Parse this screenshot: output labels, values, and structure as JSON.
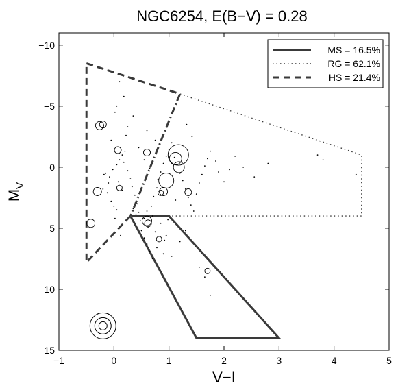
{
  "chart_data": {
    "type": "scatter",
    "title": "NGC6254,  E(B−V) = 0.28",
    "xlabel_main": "V−I",
    "ylabel_main": "M",
    "ylabel_sub": "V",
    "xlim": [
      -1,
      5
    ],
    "ylim": [
      15,
      -11
    ],
    "x_ticks": [
      -1,
      0,
      1,
      2,
      3,
      4,
      5
    ],
    "x_tick_labels": [
      "−1",
      "0",
      "1",
      "2",
      "3",
      "4",
      "5"
    ],
    "y_ticks": [
      -10,
      -5,
      0,
      5,
      10,
      15
    ],
    "y_tick_labels": [
      "−10",
      "−5",
      "0",
      "5",
      "10",
      "15"
    ],
    "grid": false,
    "legend_position": "top-right",
    "colors": {
      "regions": "#3a3a3a",
      "points": "#000000"
    },
    "regions": [
      {
        "label": "MS = 16.5%",
        "style": "solid",
        "polygon": [
          [
            0.3,
            4.0
          ],
          [
            1.0,
            4.0
          ],
          [
            3.0,
            14.0
          ],
          [
            1.5,
            14.0
          ]
        ]
      },
      {
        "label": "RG = 62.1%",
        "style": "dotted",
        "polygon": [
          [
            0.3,
            4.0
          ],
          [
            1.2,
            -6.0
          ],
          [
            4.5,
            -1.0
          ],
          [
            4.5,
            4.0
          ],
          [
            1.0,
            4.0
          ]
        ]
      },
      {
        "label": "HS = 21.4%",
        "style": "dashed",
        "polygon": [
          [
            -0.5,
            -8.5
          ],
          [
            1.2,
            -6.0
          ],
          [
            0.3,
            4.0
          ],
          [
            -0.5,
            7.8
          ]
        ]
      }
    ],
    "region_boundary": {
      "style": "dashdot",
      "from": [
        1.2,
        -6.0
      ],
      "to": [
        0.3,
        4.0
      ]
    },
    "dots": [
      [
        -0.2,
        1.8
      ],
      [
        -0.12,
        2.1
      ],
      [
        -0.05,
        2.8
      ],
      [
        0.0,
        3.2
      ],
      [
        0.05,
        3.5
      ],
      [
        0.02,
        4.2
      ],
      [
        0.08,
        5.0
      ],
      [
        0.12,
        5.6
      ],
      [
        -0.1,
        1.3
      ],
      [
        -0.08,
        0.8
      ],
      [
        -0.15,
        0.5
      ],
      [
        -0.02,
        0.2
      ],
      [
        0.05,
        -0.2
      ],
      [
        0.1,
        -0.6
      ],
      [
        0.15,
        -1.0
      ],
      [
        0.2,
        -1.3
      ],
      [
        0.18,
        -0.4
      ],
      [
        0.25,
        0.3
      ],
      [
        0.3,
        0.9
      ],
      [
        0.33,
        1.6
      ],
      [
        0.38,
        2.3
      ],
      [
        0.42,
        3.0
      ],
      [
        0.45,
        3.7
      ],
      [
        0.48,
        4.4
      ],
      [
        0.5,
        5.2
      ],
      [
        0.55,
        5.8
      ],
      [
        0.6,
        6.3
      ],
      [
        0.62,
        4.9
      ],
      [
        0.68,
        3.2
      ],
      [
        0.72,
        2.4
      ],
      [
        0.78,
        1.7
      ],
      [
        0.8,
        1.0
      ],
      [
        0.85,
        0.4
      ],
      [
        0.9,
        -0.3
      ],
      [
        0.95,
        -0.9
      ],
      [
        1.0,
        -1.4
      ],
      [
        1.05,
        -2.0
      ],
      [
        1.1,
        -0.8
      ],
      [
        1.15,
        -0.2
      ],
      [
        1.2,
        0.5
      ],
      [
        1.25,
        1.1
      ],
      [
        1.3,
        1.8
      ],
      [
        1.35,
        2.5
      ],
      [
        1.4,
        3.1
      ],
      [
        1.45,
        3.6
      ],
      [
        1.5,
        2.2
      ],
      [
        1.55,
        1.3
      ],
      [
        1.6,
        0.6
      ],
      [
        1.65,
        -0.1
      ],
      [
        1.7,
        -0.7
      ],
      [
        1.75,
        -1.3
      ],
      [
        1.85,
        -0.5
      ],
      [
        1.9,
        0.4
      ],
      [
        2.0,
        1.2
      ],
      [
        2.1,
        0.2
      ],
      [
        2.2,
        -0.9
      ],
      [
        2.35,
        0.0
      ],
      [
        2.55,
        0.8
      ],
      [
        2.8,
        -0.3
      ],
      [
        3.7,
        -1.0
      ],
      [
        3.8,
        -0.6
      ],
      [
        4.4,
        0.6
      ],
      [
        0.65,
        6.9
      ],
      [
        0.7,
        7.5
      ],
      [
        0.78,
        6.6
      ],
      [
        0.9,
        7.1
      ],
      [
        1.05,
        7.3
      ],
      [
        1.2,
        6.1
      ],
      [
        1.3,
        5.2
      ],
      [
        1.55,
        8.2
      ],
      [
        1.65,
        9.0
      ],
      [
        1.75,
        10.5
      ],
      [
        0.55,
        4.2
      ],
      [
        0.6,
        3.6
      ],
      [
        0.7,
        4.0
      ],
      [
        0.85,
        4.6
      ],
      [
        0.95,
        5.6
      ],
      [
        0.4,
        3.9
      ],
      [
        0.35,
        3.4
      ],
      [
        0.15,
        1.9
      ],
      [
        0.08,
        1.2
      ],
      [
        -0.18,
        0.6
      ],
      [
        0.02,
        -4.5
      ],
      [
        0.05,
        -5.0
      ],
      [
        0.25,
        -3.3
      ],
      [
        -0.05,
        -2.2
      ],
      [
        0.22,
        -2.6
      ],
      [
        0.45,
        -1.6
      ],
      [
        0.55,
        -0.6
      ],
      [
        0.65,
        0.1
      ],
      [
        1.12,
        2.7
      ],
      [
        1.32,
        -3.5
      ],
      [
        1.42,
        -2.5
      ],
      [
        0.98,
        4.3
      ],
      [
        0.75,
        5.3
      ],
      [
        0.92,
        6.0
      ],
      [
        0.1,
        -7.0
      ],
      [
        0.18,
        -5.8
      ],
      [
        0.35,
        -4.2
      ],
      [
        0.6,
        -3.0
      ],
      [
        0.75,
        -2.2
      ]
    ],
    "circles": [
      {
        "x": -0.26,
        "y": -3.4,
        "r": 6
      },
      {
        "x": -0.2,
        "y": -3.5,
        "r": 5
      },
      {
        "x": 0.07,
        "y": -1.4,
        "r": 5
      },
      {
        "x": 0.6,
        "y": -1.2,
        "r": 5
      },
      {
        "x": 1.17,
        "y": -1.0,
        "r": 15
      },
      {
        "x": 1.12,
        "y": -0.7,
        "r": 9
      },
      {
        "x": 1.18,
        "y": 0.0,
        "r": 8
      },
      {
        "x": 0.95,
        "y": 1.1,
        "r": 11
      },
      {
        "x": 0.9,
        "y": 2.0,
        "r": 6
      },
      {
        "x": 0.85,
        "y": 2.1,
        "r": 4
      },
      {
        "x": 1.35,
        "y": 2.05,
        "r": 5
      },
      {
        "x": 0.1,
        "y": 1.7,
        "r": 4
      },
      {
        "x": -0.3,
        "y": 2.0,
        "r": 6
      },
      {
        "x": -0.42,
        "y": 4.6,
        "r": 6
      },
      {
        "x": 0.6,
        "y": 4.4,
        "r": 7
      },
      {
        "x": 0.62,
        "y": 4.6,
        "r": 5
      },
      {
        "x": 0.82,
        "y": 5.9,
        "r": 4
      },
      {
        "x": 1.7,
        "y": 8.5,
        "r": 4
      }
    ],
    "size_key": {
      "x": -0.2,
      "y": 13.0,
      "radii": [
        19,
        12,
        6
      ]
    }
  }
}
